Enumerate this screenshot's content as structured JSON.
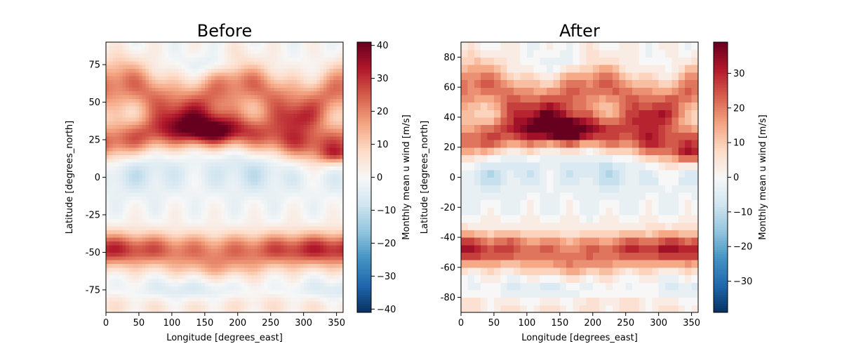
{
  "chart_data": [
    {
      "type": "heatmap",
      "title": "Before",
      "xlabel": "Longitude [degrees_east]",
      "ylabel": "Latitude [degrees_north]",
      "xlim": [
        0,
        360
      ],
      "ylim": [
        -90,
        90
      ],
      "xticks": [
        0,
        50,
        100,
        150,
        200,
        250,
        300,
        350
      ],
      "yticks": [
        -75,
        -50,
        -25,
        0,
        25,
        50,
        75
      ],
      "colormap": "RdBu_r",
      "colorbar": {
        "label": "Monthly mean u wind [m/s]",
        "range": [
          -41,
          41
        ],
        "ticks": [
          -40,
          -30,
          -20,
          -10,
          0,
          10,
          20,
          30,
          40
        ]
      },
      "resolution": "smooth",
      "grid": false
    },
    {
      "type": "heatmap",
      "title": "After",
      "xlabel": "Longitude [degrees_east]",
      "ylabel": "Latitude [degrees_north]",
      "xlim": [
        0,
        360
      ],
      "ylim": [
        -90,
        90
      ],
      "xticks": [
        0,
        50,
        100,
        150,
        200,
        250,
        300,
        350
      ],
      "yticks": [
        -80,
        -60,
        -40,
        -20,
        0,
        20,
        40,
        60,
        80
      ],
      "colormap": "RdBu_r",
      "colorbar": {
        "label": "Monthly mean u wind [m/s]",
        "range": [
          -39,
          39
        ],
        "ticks": [
          -30,
          -20,
          -10,
          0,
          10,
          20,
          30
        ]
      },
      "resolution": "coarse",
      "grid": false
    }
  ]
}
